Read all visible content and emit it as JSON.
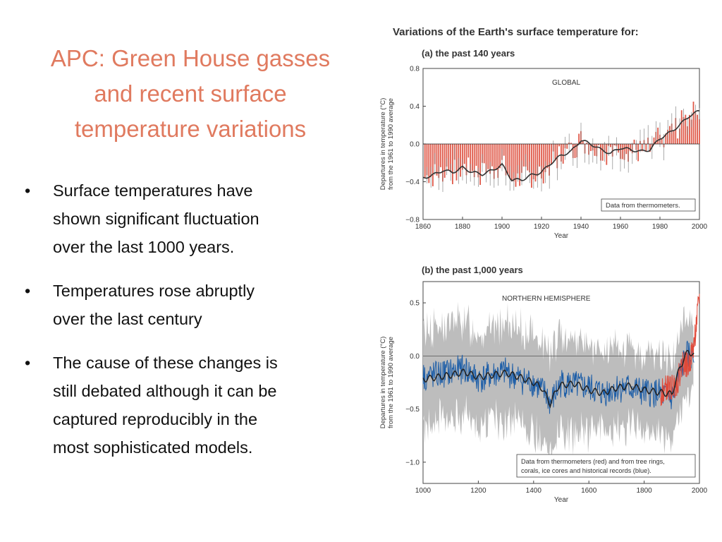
{
  "slide": {
    "title_lines": [
      "APC: Green House gasses",
      "and recent surface",
      "temperature variations"
    ],
    "bullets": [
      [
        "Surface temperatures have",
        "shown significant fluctuation",
        "over the last 1000 years."
      ],
      [
        "Temperatures rose abruptly",
        "over the last century"
      ],
      [
        "The cause of these changes is",
        "still debated although it can be",
        "captured reproducibly in the",
        "most sophisticated models."
      ]
    ],
    "bullet_glyph": "•",
    "colors": {
      "title": "#e07a5f",
      "text": "#111111"
    }
  },
  "figure_title": "Variations of the Earth's surface temperature for:",
  "chart_data": [
    {
      "type": "bar",
      "panel_title": "(a) the past 140 years",
      "inset_label": "GLOBAL",
      "note": "Data from thermometers.",
      "xlabel": "Year",
      "ylabel_lines": [
        "Departures in temperature (°C)",
        "from the 1961 to 1990 average"
      ],
      "xlim": [
        1860,
        2000
      ],
      "ylim": [
        -0.8,
        0.8
      ],
      "xticks": [
        "1860",
        "1880",
        "1900",
        "1920",
        "1940",
        "1960",
        "1980",
        "2000"
      ],
      "yticks": [
        "0.8",
        "0.4",
        "0.0",
        "−0.4",
        "−0.8"
      ],
      "smooth_curve": {
        "x": [
          1860,
          1865,
          1870,
          1875,
          1880,
          1885,
          1890,
          1895,
          1900,
          1905,
          1910,
          1915,
          1920,
          1925,
          1930,
          1935,
          1940,
          1945,
          1950,
          1955,
          1960,
          1965,
          1970,
          1975,
          1980,
          1985,
          1990,
          1995,
          2000
        ],
        "y": [
          -0.36,
          -0.33,
          -0.28,
          -0.3,
          -0.25,
          -0.3,
          -0.32,
          -0.28,
          -0.22,
          -0.38,
          -0.38,
          -0.33,
          -0.3,
          -0.2,
          -0.12,
          -0.08,
          0.04,
          0.0,
          -0.06,
          -0.1,
          -0.04,
          -0.06,
          -0.08,
          -0.06,
          0.06,
          0.12,
          0.2,
          0.3,
          0.35
        ]
      },
      "colors": {
        "bars": "#e05a4a",
        "curve": "#333333",
        "errorbars": "#888888"
      }
    },
    {
      "type": "line",
      "panel_title": "(b) the past 1,000 years",
      "inset_label": "NORTHERN HEMISPHERE",
      "note_lines": [
        "Data from thermometers (red) and from tree rings,",
        "corals, ice cores and historical records (blue)."
      ],
      "xlabel": "Year",
      "ylabel_lines": [
        "Departures in temperature (°C)",
        "from the 1961 to 1990 average"
      ],
      "xlim": [
        1000,
        2000
      ],
      "ylim": [
        -1.2,
        0.7
      ],
      "xticks": [
        "1000",
        "1200",
        "1400",
        "1600",
        "1800",
        "2000"
      ],
      "yticks": [
        "0.5",
        "0.0",
        "−0.5",
        "−1.0"
      ],
      "series": [
        {
          "role": "proxy",
          "x": [
            1000,
            1050,
            1100,
            1150,
            1200,
            1250,
            1300,
            1350,
            1400,
            1450,
            1460,
            1500,
            1550,
            1600,
            1650,
            1700,
            1750,
            1800,
            1850,
            1900,
            1925,
            1950
          ],
          "y": [
            -0.2,
            -0.18,
            -0.15,
            -0.12,
            -0.22,
            -0.18,
            -0.15,
            -0.22,
            -0.25,
            -0.38,
            -0.45,
            -0.25,
            -0.28,
            -0.3,
            -0.35,
            -0.3,
            -0.3,
            -0.35,
            -0.35,
            -0.4,
            -0.22,
            0.0
          ]
        },
        {
          "role": "smoothed",
          "x": [
            1000,
            1050,
            1100,
            1150,
            1200,
            1250,
            1300,
            1350,
            1400,
            1430,
            1460,
            1490,
            1550,
            1600,
            1650,
            1700,
            1750,
            1800,
            1850,
            1900,
            1930,
            1960,
            1980
          ],
          "y": [
            -0.22,
            -0.2,
            -0.18,
            -0.15,
            -0.2,
            -0.18,
            -0.16,
            -0.2,
            -0.25,
            -0.3,
            -0.45,
            -0.28,
            -0.26,
            -0.32,
            -0.35,
            -0.3,
            -0.28,
            -0.32,
            -0.34,
            -0.36,
            -0.1,
            0.05,
            0.0
          ]
        },
        {
          "role": "thermometer",
          "x": [
            1860,
            1880,
            1900,
            1920,
            1940,
            1960,
            1980,
            2000
          ],
          "y": [
            -0.35,
            -0.3,
            -0.3,
            -0.25,
            -0.05,
            -0.1,
            0.1,
            0.55
          ]
        }
      ],
      "uncertainty_band_halfwidth": 0.45,
      "colors": {
        "proxy": "#1f5fa8",
        "thermometer": "#e04a3a",
        "smoothed": "#222222",
        "band": "#bdbdbd"
      }
    }
  ]
}
